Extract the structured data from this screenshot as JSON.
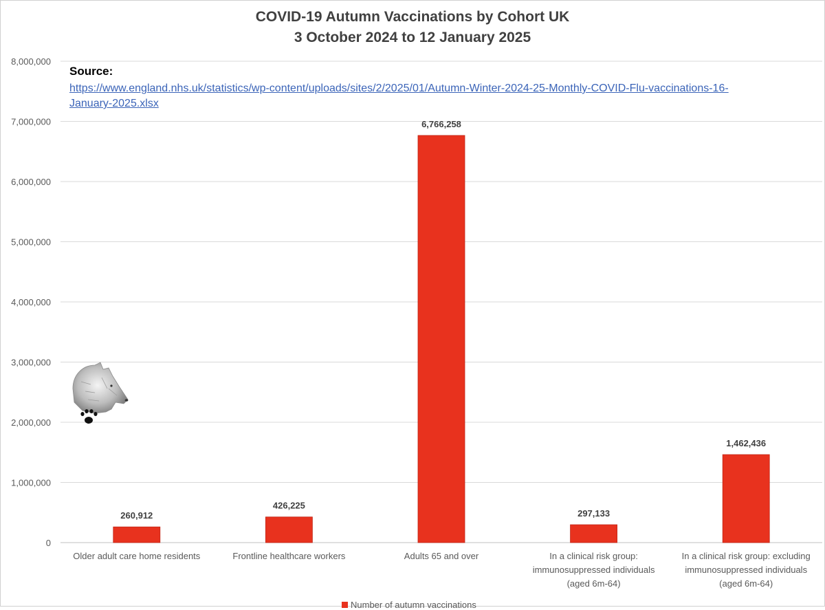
{
  "chart_data": {
    "type": "bar",
    "title": "COVID-19 Autumn Vaccinations by Cohort UK",
    "subtitle": "3 October 2024 to 12 January 2025",
    "source_label": "Source:",
    "source_url": "https://www.england.nhs.uk/statistics/wp-content/uploads/sites/2/2025/01/Autumn-Winter-2024-25-Monthly-COVID-Flu-vaccinations-16-January-2025.xlsx",
    "categories": [
      [
        "Older adult care home residents"
      ],
      [
        "Frontline healthcare workers"
      ],
      [
        "Adults 65 and over"
      ],
      [
        "In a clinical risk group:",
        "immunosuppressed individuals",
        "(aged 6m-64)"
      ],
      [
        "In a clinical risk group: excluding",
        "immunosuppressed individuals",
        "(aged 6m-64)"
      ]
    ],
    "series": [
      {
        "name": "Number of autumn vaccinations",
        "values": [
          260912,
          426225,
          6766258,
          297133,
          1462436
        ],
        "data_labels": [
          "260,912",
          "426,225",
          "6,766,258",
          "297,133",
          "1,462,436"
        ],
        "color": "#e8321e"
      }
    ],
    "y_ticks": [
      "0",
      "1,000,000",
      "2,000,000",
      "3,000,000",
      "4,000,000",
      "5,000,000",
      "6,000,000",
      "7,000,000",
      "8,000,000"
    ],
    "ylim": [
      0,
      8000000
    ],
    "grid": true,
    "legend_position": "bottom"
  }
}
